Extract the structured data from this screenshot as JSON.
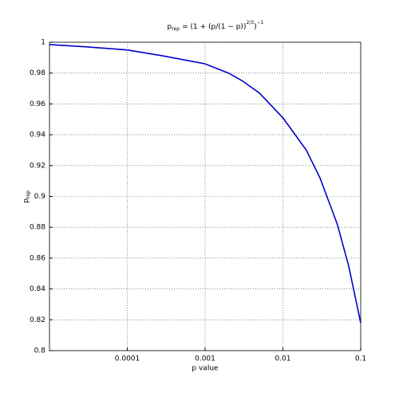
{
  "chart_data": {
    "type": "line",
    "title": {
      "lhs": "p",
      "lhs_sub": "rep",
      "body": "= (1 + (p/(1 − p))",
      "exp1": "2/3",
      "close": ")",
      "exp2": "−1"
    },
    "xlabel": "p value",
    "ylabel": {
      "text": "p",
      "sub": "rep"
    },
    "xscale": "log",
    "grid": true,
    "xlim": [
      1e-05,
      0.1
    ],
    "xticks": [
      0.0001,
      0.001,
      0.01,
      0.1
    ],
    "ylim": [
      0.8,
      1
    ],
    "yticks": [
      0.8,
      0.82,
      0.84,
      0.86,
      0.88,
      0.9,
      0.92,
      0.94,
      0.96,
      0.98,
      1
    ],
    "x": [
      1e-05,
      3e-05,
      0.0001,
      0.0003,
      0.001,
      0.002,
      0.003,
      0.005,
      0.01,
      0.02,
      0.03,
      0.05,
      0.07,
      0.1
    ],
    "series": [
      {
        "color": "#0000cc",
        "values": [
          0.9985,
          0.997,
          0.995,
          0.991,
          0.986,
          0.98,
          0.975,
          0.967,
          0.951,
          0.93,
          0.912,
          0.882,
          0.855,
          0.818
        ]
      }
    ]
  }
}
